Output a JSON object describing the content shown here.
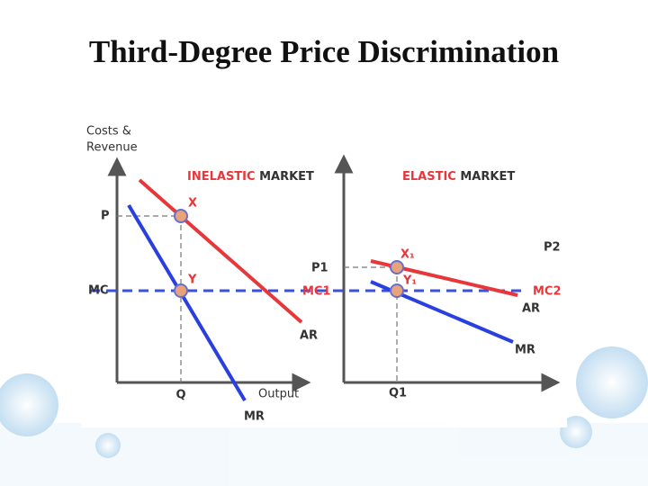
{
  "header": {
    "title": "Third-Degree Price Discrimination"
  },
  "diagram": {
    "y_axis_label": [
      "Costs &",
      "Revenue"
    ],
    "inelastic": {
      "heading": [
        "INELASTIC",
        "MARKET"
      ],
      "price_label": "P",
      "mc_label": "MC",
      "quantity_label": "Q",
      "x_axis_label": "Output",
      "mr_label": "MR",
      "ar_label": "AR",
      "point_x": "X",
      "point_y": "Y",
      "mc_line_label": "MC1"
    },
    "elastic": {
      "heading": [
        "ELASTIC",
        "MARKET"
      ],
      "price_label": "P1",
      "price2_label": "P2",
      "point_x": "X₁",
      "point_y": "Y₁",
      "mc_line_label": "MC2",
      "ar_label": "AR",
      "mr_label": "MR",
      "quantity_label": "Q1"
    }
  }
}
